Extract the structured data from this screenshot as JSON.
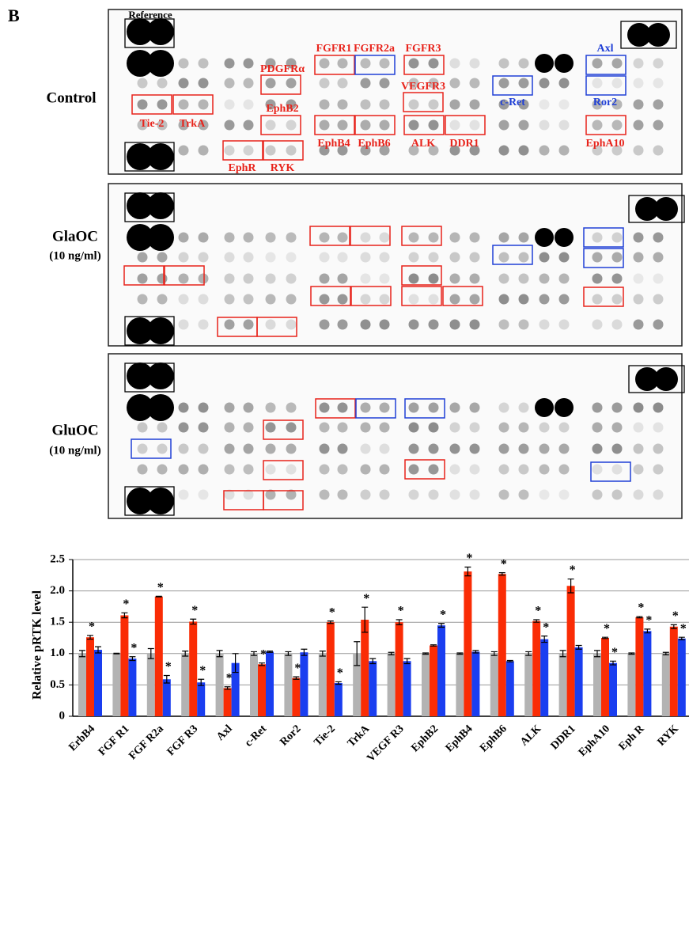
{
  "figure_label": "B",
  "blots": [
    {
      "label": "Control",
      "annotations": [
        {
          "text": "Reference",
          "color": "#000000"
        },
        {
          "text": "PDGFRα",
          "color": "#e8231b"
        },
        {
          "text": "FGFR1",
          "color": "#e8231b"
        },
        {
          "text": "FGFR2a",
          "color": "#e8231b"
        },
        {
          "text": "FGFR3",
          "color": "#e8231b"
        },
        {
          "text": "Axl",
          "color": "#1f3fd6"
        },
        {
          "text": "VEGFR3",
          "color": "#e8231b"
        },
        {
          "text": "c-Ret",
          "color": "#1f3fd6"
        },
        {
          "text": "Ror2",
          "color": "#1f3fd6"
        },
        {
          "text": "EphB2",
          "color": "#e8231b"
        },
        {
          "text": "Tie-2",
          "color": "#e8231b"
        },
        {
          "text": "TrkA",
          "color": "#e8231b"
        },
        {
          "text": "EphB4",
          "color": "#e8231b"
        },
        {
          "text": "EphB6",
          "color": "#e8231b"
        },
        {
          "text": "ALK",
          "color": "#e8231b"
        },
        {
          "text": "DDR1",
          "color": "#e8231b"
        },
        {
          "text": "EphA10",
          "color": "#e8231b"
        },
        {
          "text": "EphR",
          "color": "#e8231b"
        },
        {
          "text": "RYK",
          "color": "#e8231b"
        }
      ]
    },
    {
      "label": "GlaOC",
      "sublabel": "(10 ng/ml)"
    },
    {
      "label": "GluOC",
      "sublabel": "(10 ng/ml)"
    }
  ],
  "chart_data": {
    "type": "bar",
    "y_label": "Relative pRTK level",
    "categories": [
      "ErbB4",
      "FGF R1",
      "FGF R2a",
      "FGF R3",
      "Axl",
      "c-Ret",
      "Ror2",
      "Tie-2",
      "TrkA",
      "VEGF R3",
      "EphB2",
      "EphB4",
      "EphB6",
      "ALK",
      "DDR1",
      "EphA10",
      "Eph R",
      "RYK"
    ],
    "series": [
      {
        "color": "#b3b3b3",
        "values": [
          1,
          1,
          1,
          1,
          1,
          1,
          1,
          1,
          1,
          1,
          1,
          1,
          1,
          1,
          1,
          1,
          1,
          1
        ],
        "errors": [
          0.05,
          0.005,
          0.08,
          0.04,
          0.05,
          0.03,
          0.03,
          0.04,
          0.19,
          0.02,
          0.01,
          0.01,
          0.03,
          0.03,
          0.05,
          0.05,
          0.01,
          0.02
        ],
        "marks": [
          null,
          null,
          null,
          null,
          null,
          null,
          null,
          null,
          null,
          null,
          null,
          null,
          null,
          null,
          null,
          null,
          null,
          null
        ]
      },
      {
        "color": "#fa2c05",
        "values": [
          1.26,
          1.61,
          1.91,
          1.51,
          0.45,
          0.83,
          0.61,
          1.5,
          1.54,
          1.5,
          1.13,
          2.31,
          2.27,
          1.52,
          2.08,
          1.25,
          1.58,
          1.43
        ],
        "errors": [
          0.03,
          0.04,
          0.005,
          0.04,
          0.02,
          0.02,
          0.02,
          0.02,
          0.2,
          0.04,
          0.01,
          0.07,
          0.02,
          0.02,
          0.11,
          0.01,
          0.01,
          0.03
        ],
        "marks": [
          "*",
          "*",
          "*",
          "*",
          "*",
          "*",
          "*",
          "*",
          "*",
          "*",
          null,
          "*",
          "*",
          "*",
          "*",
          "*",
          "*",
          "*"
        ]
      },
      {
        "color": "#1a3ef0",
        "values": [
          1.06,
          0.92,
          0.59,
          0.54,
          0.85,
          1.03,
          1.02,
          0.53,
          0.88,
          0.88,
          1.45,
          1.03,
          0.88,
          1.23,
          1.1,
          0.85,
          1.36,
          1.24
        ],
        "errors": [
          0.05,
          0.03,
          0.06,
          0.05,
          0.15,
          0.01,
          0.05,
          0.02,
          0.04,
          0.04,
          0.03,
          0.02,
          0.01,
          0.05,
          0.03,
          0.03,
          0.03,
          0.02
        ],
        "marks": [
          null,
          "*",
          "*",
          "*",
          null,
          null,
          null,
          "*",
          null,
          null,
          "*",
          null,
          null,
          "*",
          null,
          "*",
          "*",
          "*"
        ]
      }
    ],
    "ylim": [
      0,
      2.5
    ],
    "yticks": [
      0,
      0.5,
      {
        "value": 1,
        "label": "1.0"
      },
      1.5,
      {
        "value": 2,
        "label": "2.0"
      },
      2.5
    ],
    "grid": true
  }
}
